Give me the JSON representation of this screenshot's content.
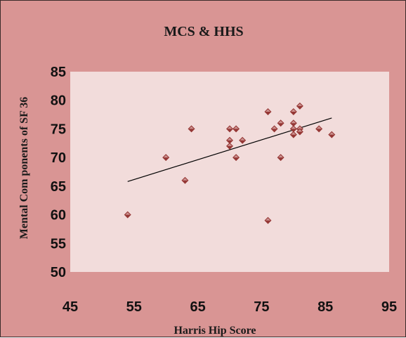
{
  "chart_data": {
    "type": "scatter",
    "title": "MCS & HHS",
    "xlabel": "Harris Hip Score",
    "ylabel": "Mental Com ponents of SF 36",
    "xlim": [
      45,
      95
    ],
    "ylim": [
      50,
      85
    ],
    "x_ticks": [
      "45",
      "55",
      "65",
      "75",
      "85",
      "95"
    ],
    "y_ticks": [
      "50",
      "55",
      "60",
      "65",
      "70",
      "75",
      "80",
      "85"
    ],
    "grid": false,
    "legend": "none",
    "colors": {
      "background": "#d99594",
      "plot_area": "#f2dcdb",
      "marker": "#953735",
      "marker_light": "#e6b9b8",
      "trendline": "#000000"
    },
    "series": [
      {
        "points": [
          [
            54,
            60
          ],
          [
            60,
            70
          ],
          [
            63,
            66
          ],
          [
            64,
            75
          ],
          [
            70,
            75
          ],
          [
            70,
            73
          ],
          [
            70,
            72
          ],
          [
            71,
            75
          ],
          [
            71,
            70
          ],
          [
            72,
            73
          ],
          [
            76,
            78
          ],
          [
            76,
            59
          ],
          [
            77,
            75
          ],
          [
            78,
            76
          ],
          [
            78,
            70
          ],
          [
            80,
            78
          ],
          [
            80,
            76
          ],
          [
            80,
            75
          ],
          [
            80,
            74
          ],
          [
            81,
            79
          ],
          [
            81,
            75
          ],
          [
            81,
            74.5
          ],
          [
            84,
            75
          ],
          [
            86,
            74
          ]
        ]
      }
    ],
    "trendline": {
      "x": [
        54,
        86
      ],
      "y": [
        65.8,
        76.9
      ]
    }
  }
}
